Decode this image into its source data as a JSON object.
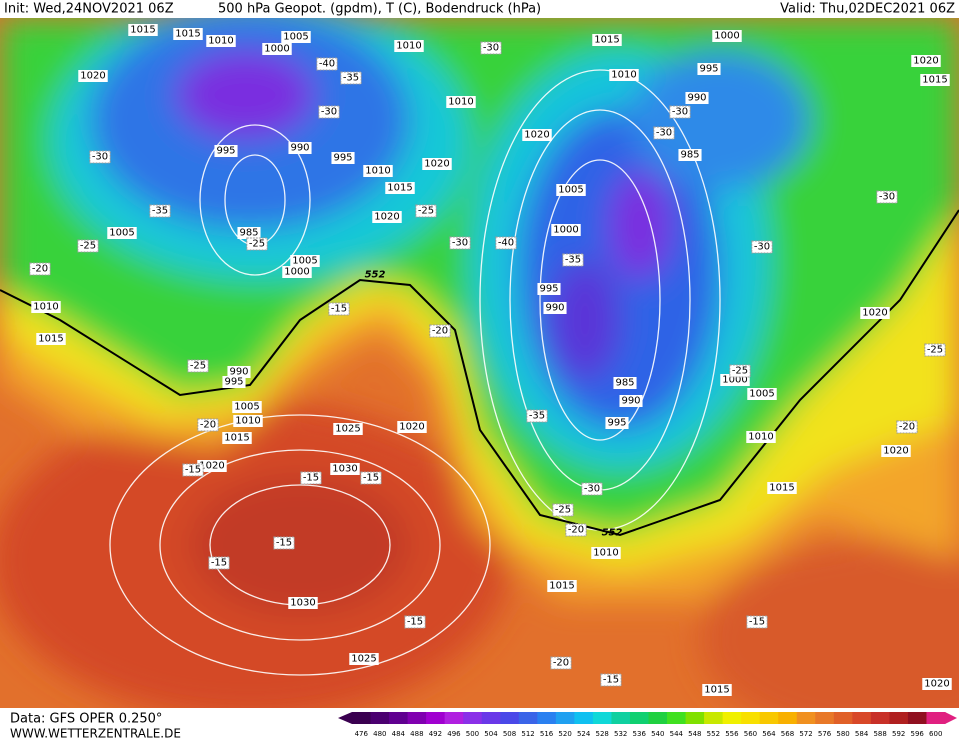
{
  "header": {
    "init": "Init: Wed,24NOV2021 06Z",
    "title": "500 hPa Geopot. (gpdm), T (C), Bodendruck (hPa)",
    "valid": "Valid: Thu,02DEC2021 06Z"
  },
  "footer": {
    "data": "Data: GFS OPER 0.250°",
    "site": "WWW.WETTERZENTRALE.DE"
  },
  "legend": {
    "labels": [
      "476",
      "480",
      "484",
      "488",
      "492",
      "496",
      "500",
      "504",
      "508",
      "512",
      "516",
      "520",
      "524",
      "528",
      "532",
      "536",
      "540",
      "544",
      "548",
      "552",
      "556",
      "560",
      "564",
      "568",
      "572",
      "576",
      "580",
      "584",
      "588",
      "592",
      "596",
      "600"
    ],
    "colors": [
      "#3a0050",
      "#4b0070",
      "#600090",
      "#8000b0",
      "#a000d0",
      "#b020e0",
      "#8a30e8",
      "#6a38e8",
      "#4a48e8",
      "#3a64e8",
      "#2a80f0",
      "#20a0f0",
      "#10c0f0",
      "#10d8d8",
      "#10d0a0",
      "#10d070",
      "#20d040",
      "#40e020",
      "#80e000",
      "#c8e800",
      "#f0f000",
      "#f8e000",
      "#f8c800",
      "#f8b000",
      "#f09020",
      "#e87828",
      "#e06028",
      "#d84828",
      "#c83028",
      "#b02020",
      "#901020",
      "#e02080"
    ]
  },
  "map": {
    "pressure_labels": [
      "1015",
      "1015",
      "1010",
      "1005",
      "1000",
      "1010",
      "1020",
      "1015",
      "1000",
      "1010",
      "995",
      "1020",
      "1015",
      "1010",
      "990",
      "995",
      "990",
      "995",
      "1020",
      "1020",
      "985",
      "1010",
      "1015",
      "1005",
      "1020",
      "1005",
      "985",
      "1000",
      "1005",
      "1000",
      "995",
      "990",
      "1010",
      "1020",
      "1015",
      "990",
      "995",
      "985",
      "1000",
      "990",
      "1005",
      "1005",
      "1010",
      "995",
      "1025",
      "1020",
      "1015",
      "1010",
      "1020",
      "1030",
      "1015",
      "1020",
      "1010",
      "1015",
      "1030",
      "1025",
      "1015",
      "1020"
    ],
    "temperature_labels": [
      "-30",
      "-40",
      "-35",
      "-30",
      "-30",
      "-30",
      "-30",
      "-35",
      "-25",
      "-30",
      "-25",
      "-25",
      "-30",
      "-40",
      "-35",
      "-30",
      "-20",
      "-15",
      "-20",
      "-25",
      "-25",
      "-25",
      "-20",
      "-35",
      "-20",
      "-15",
      "-15",
      "-15",
      "-30",
      "-25",
      "-20",
      "-15",
      "-15",
      "-15",
      "-15",
      "-20",
      "-15"
    ],
    "geopotential_labels": [
      "552",
      "552"
    ]
  }
}
